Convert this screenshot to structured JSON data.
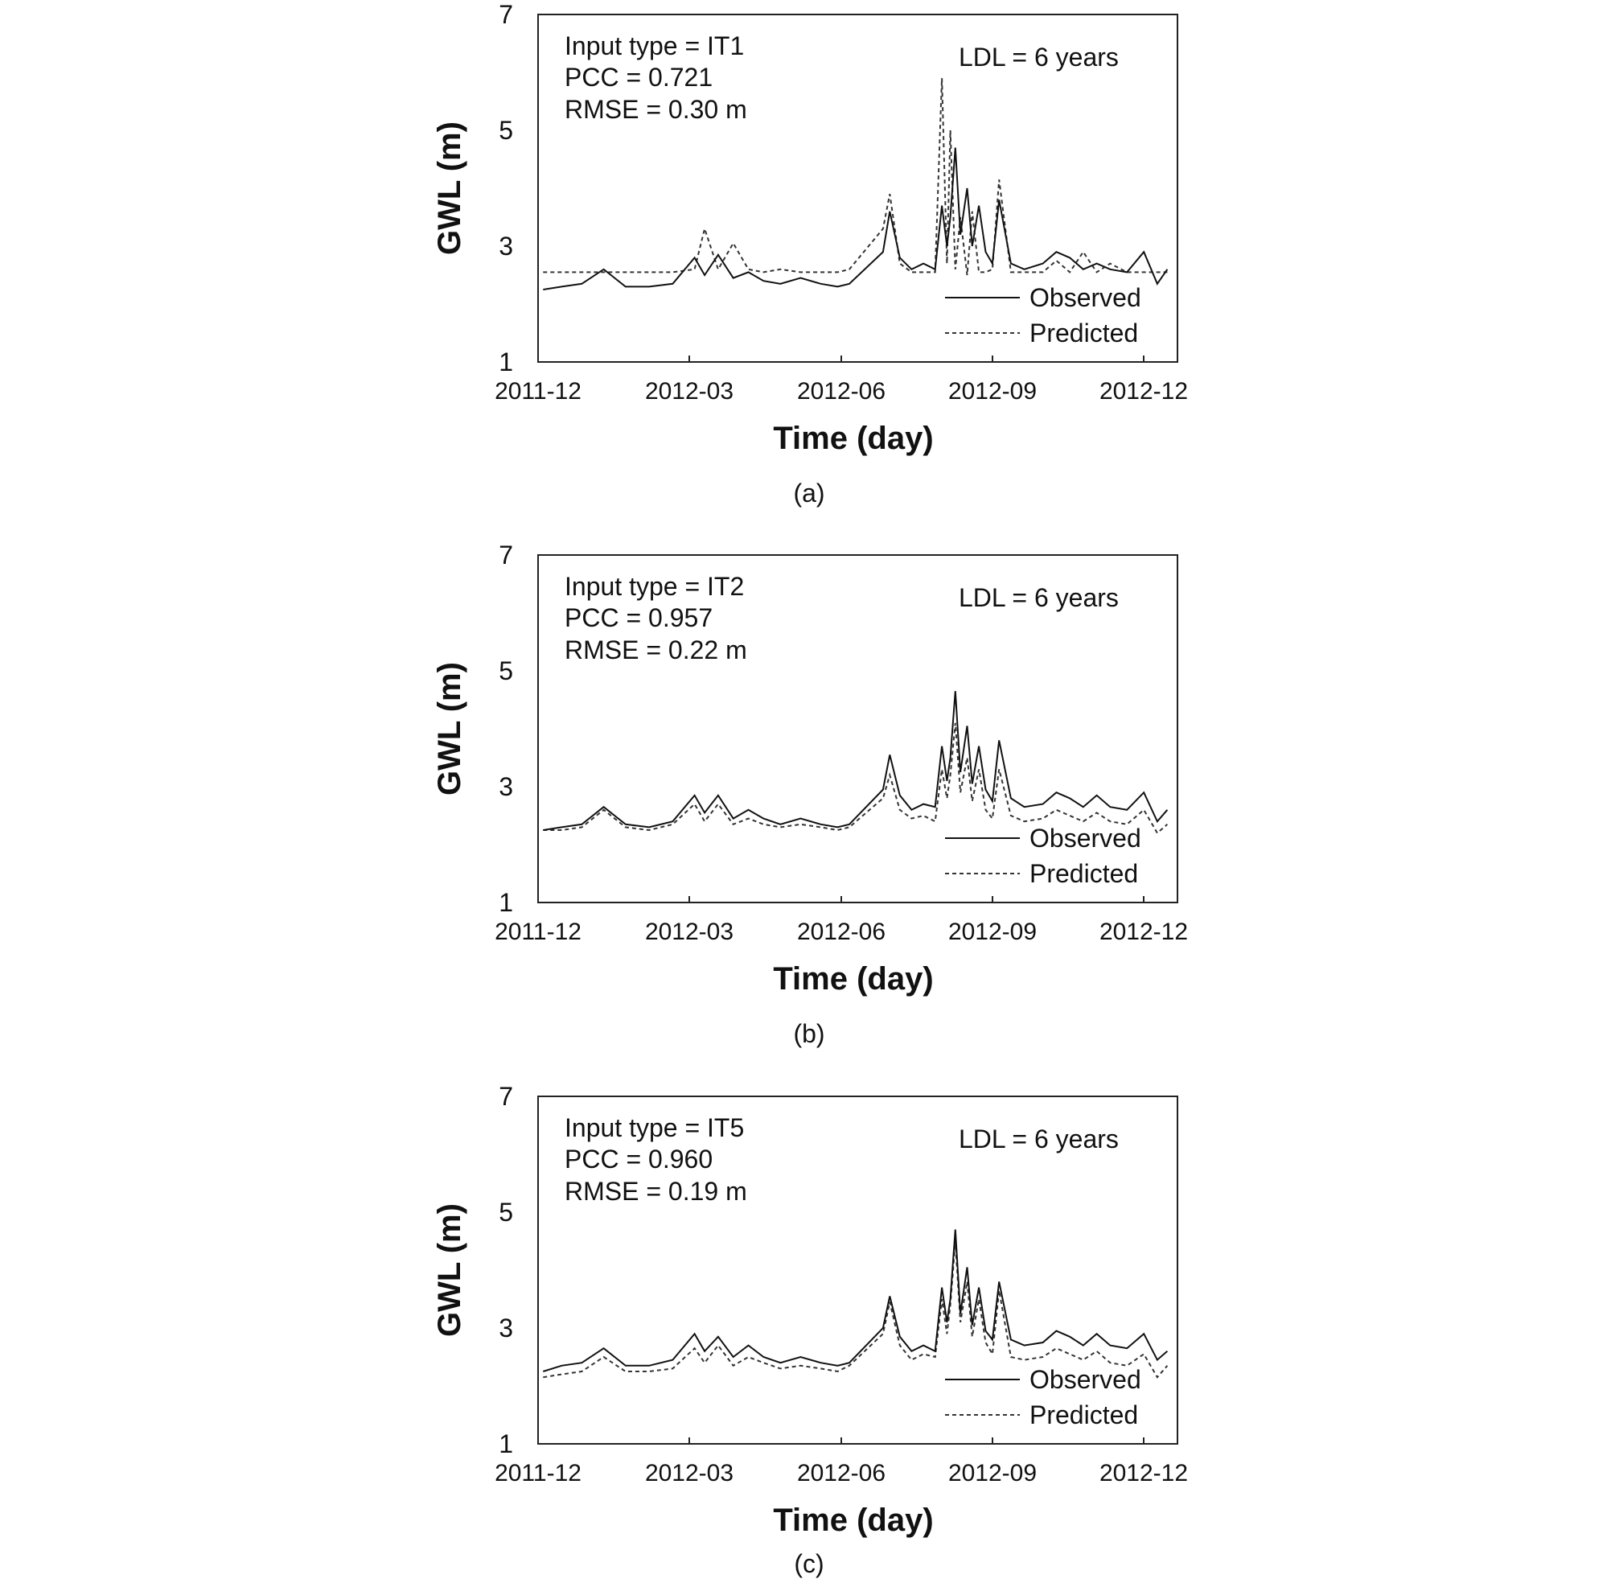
{
  "chart_data": [
    {
      "type": "line",
      "panel": "(a)",
      "xlabel": "Time (day)",
      "ylabel": "GWL (m)",
      "xlim": [
        "2011-12-06",
        "2012-12-20"
      ],
      "ylim": [
        1,
        7
      ],
      "x_ticks": [
        "2011-12",
        "2012-03",
        "2012-06",
        "2012-09",
        "2012-12"
      ],
      "y_ticks": [
        1,
        3,
        5,
        7
      ],
      "grid": false,
      "legend": "bottom-right",
      "annotations": [
        "Input type = IT1",
        "PCC = 0.721",
        "RMSE = 0.30 m",
        "LDL = 6 years"
      ],
      "x": [
        "2011-12-09",
        "2011-12-20",
        "2012-01-01",
        "2012-01-14",
        "2012-01-27",
        "2012-02-10",
        "2012-02-24",
        "2012-03-08",
        "2012-03-14",
        "2012-03-22",
        "2012-03-31",
        "2012-04-09",
        "2012-04-18",
        "2012-04-28",
        "2012-05-10",
        "2012-05-22",
        "2012-06-01",
        "2012-06-08",
        "2012-06-28",
        "2012-07-02",
        "2012-07-08",
        "2012-07-15",
        "2012-07-22",
        "2012-07-29",
        "2012-08-02",
        "2012-08-05",
        "2012-08-07",
        "2012-08-10",
        "2012-08-13",
        "2012-08-17",
        "2012-08-20",
        "2012-08-24",
        "2012-08-28",
        "2012-09-01",
        "2012-09-05",
        "2012-09-12",
        "2012-09-20",
        "2012-10-01",
        "2012-10-09",
        "2012-10-17",
        "2012-10-25",
        "2012-11-02",
        "2012-11-10",
        "2012-11-20",
        "2012-11-30",
        "2012-12-08",
        "2012-12-14"
      ],
      "series": [
        {
          "name": "Observed",
          "style": "solid",
          "values": [
            2.25,
            2.3,
            2.35,
            2.6,
            2.3,
            2.3,
            2.35,
            2.8,
            2.5,
            2.85,
            2.45,
            2.55,
            2.4,
            2.35,
            2.45,
            2.35,
            2.3,
            2.35,
            2.9,
            3.6,
            2.8,
            2.6,
            2.7,
            2.6,
            3.7,
            3.0,
            3.5,
            4.7,
            3.2,
            4.0,
            3.0,
            3.7,
            2.9,
            2.7,
            3.8,
            2.7,
            2.6,
            2.7,
            2.9,
            2.8,
            2.6,
            2.7,
            2.6,
            2.55,
            2.9,
            2.35,
            2.6
          ]
        },
        {
          "name": "Predicted",
          "style": "dashed",
          "values": [
            2.55,
            2.55,
            2.55,
            2.55,
            2.55,
            2.55,
            2.55,
            2.6,
            3.3,
            2.6,
            3.05,
            2.6,
            2.55,
            2.6,
            2.55,
            2.55,
            2.55,
            2.6,
            3.3,
            3.9,
            2.7,
            2.55,
            2.55,
            2.55,
            5.9,
            2.7,
            5.0,
            2.6,
            3.5,
            2.5,
            3.6,
            2.55,
            2.55,
            2.6,
            4.15,
            2.55,
            2.55,
            2.55,
            2.75,
            2.55,
            2.9,
            2.55,
            2.7,
            2.55,
            2.55,
            2.55,
            2.55
          ]
        }
      ]
    },
    {
      "type": "line",
      "panel": "(b)",
      "xlabel": "Time (day)",
      "ylabel": "GWL (m)",
      "xlim": [
        "2011-12-06",
        "2012-12-20"
      ],
      "ylim": [
        1,
        7
      ],
      "x_ticks": [
        "2011-12",
        "2012-03",
        "2012-06",
        "2012-09",
        "2012-12"
      ],
      "y_ticks": [
        1,
        3,
        5,
        7
      ],
      "grid": false,
      "legend": "bottom-right",
      "annotations": [
        "Input type = IT2",
        "PCC = 0.957",
        "RMSE = 0.22 m",
        "LDL = 6 years"
      ],
      "x": [
        "2011-12-09",
        "2011-12-20",
        "2012-01-01",
        "2012-01-14",
        "2012-01-27",
        "2012-02-10",
        "2012-02-24",
        "2012-03-08",
        "2012-03-14",
        "2012-03-22",
        "2012-03-31",
        "2012-04-09",
        "2012-04-18",
        "2012-04-28",
        "2012-05-10",
        "2012-05-22",
        "2012-06-01",
        "2012-06-08",
        "2012-06-28",
        "2012-07-02",
        "2012-07-08",
        "2012-07-15",
        "2012-07-22",
        "2012-07-29",
        "2012-08-02",
        "2012-08-05",
        "2012-08-07",
        "2012-08-10",
        "2012-08-13",
        "2012-08-17",
        "2012-08-20",
        "2012-08-24",
        "2012-08-28",
        "2012-09-01",
        "2012-09-05",
        "2012-09-12",
        "2012-09-20",
        "2012-10-01",
        "2012-10-09",
        "2012-10-17",
        "2012-10-25",
        "2012-11-02",
        "2012-11-10",
        "2012-11-20",
        "2012-11-30",
        "2012-12-08",
        "2012-12-14"
      ],
      "series": [
        {
          "name": "Observed",
          "style": "solid",
          "values": [
            2.25,
            2.3,
            2.35,
            2.65,
            2.35,
            2.3,
            2.4,
            2.85,
            2.55,
            2.85,
            2.45,
            2.6,
            2.45,
            2.35,
            2.45,
            2.35,
            2.3,
            2.35,
            2.95,
            3.55,
            2.85,
            2.6,
            2.7,
            2.65,
            3.7,
            3.1,
            3.5,
            4.65,
            3.25,
            4.05,
            3.05,
            3.7,
            2.95,
            2.75,
            3.8,
            2.8,
            2.65,
            2.7,
            2.9,
            2.8,
            2.65,
            2.85,
            2.65,
            2.6,
            2.9,
            2.4,
            2.6
          ]
        },
        {
          "name": "Predicted",
          "style": "dashed",
          "values": [
            2.25,
            2.25,
            2.3,
            2.6,
            2.3,
            2.25,
            2.35,
            2.7,
            2.4,
            2.7,
            2.35,
            2.45,
            2.35,
            2.3,
            2.35,
            2.3,
            2.25,
            2.3,
            2.8,
            3.2,
            2.6,
            2.45,
            2.5,
            2.4,
            3.3,
            2.8,
            3.2,
            4.1,
            2.9,
            3.5,
            2.75,
            3.3,
            2.6,
            2.45,
            3.3,
            2.5,
            2.4,
            2.45,
            2.6,
            2.5,
            2.4,
            2.55,
            2.4,
            2.35,
            2.6,
            2.2,
            2.35
          ]
        }
      ]
    },
    {
      "type": "line",
      "panel": "(c)",
      "xlabel": "Time (day)",
      "ylabel": "GWL (m)",
      "xlim": [
        "2011-12-06",
        "2012-12-20"
      ],
      "ylim": [
        1,
        7
      ],
      "x_ticks": [
        "2011-12",
        "2012-03",
        "2012-06",
        "2012-09",
        "2012-12"
      ],
      "y_ticks": [
        1,
        3,
        5,
        7
      ],
      "grid": false,
      "legend": "bottom-right",
      "annotations": [
        "Input type = IT5",
        "PCC = 0.960",
        "RMSE = 0.19 m",
        "LDL = 6 years"
      ],
      "x": [
        "2011-12-09",
        "2011-12-20",
        "2012-01-01",
        "2012-01-14",
        "2012-01-27",
        "2012-02-10",
        "2012-02-24",
        "2012-03-08",
        "2012-03-14",
        "2012-03-22",
        "2012-03-31",
        "2012-04-09",
        "2012-04-18",
        "2012-04-28",
        "2012-05-10",
        "2012-05-22",
        "2012-06-01",
        "2012-06-08",
        "2012-06-28",
        "2012-07-02",
        "2012-07-08",
        "2012-07-15",
        "2012-07-22",
        "2012-07-29",
        "2012-08-02",
        "2012-08-05",
        "2012-08-07",
        "2012-08-10",
        "2012-08-13",
        "2012-08-17",
        "2012-08-20",
        "2012-08-24",
        "2012-08-28",
        "2012-09-01",
        "2012-09-05",
        "2012-09-12",
        "2012-09-20",
        "2012-10-01",
        "2012-10-09",
        "2012-10-17",
        "2012-10-25",
        "2012-11-02",
        "2012-11-10",
        "2012-11-20",
        "2012-11-30",
        "2012-12-08",
        "2012-12-14"
      ],
      "series": [
        {
          "name": "Observed",
          "style": "solid",
          "values": [
            2.25,
            2.35,
            2.4,
            2.65,
            2.35,
            2.35,
            2.45,
            2.9,
            2.6,
            2.85,
            2.5,
            2.7,
            2.5,
            2.4,
            2.5,
            2.4,
            2.35,
            2.4,
            3.0,
            3.55,
            2.85,
            2.6,
            2.7,
            2.6,
            3.7,
            3.1,
            3.5,
            4.7,
            3.25,
            4.05,
            3.05,
            3.7,
            2.95,
            2.8,
            3.8,
            2.8,
            2.7,
            2.75,
            2.95,
            2.85,
            2.7,
            2.9,
            2.7,
            2.65,
            2.9,
            2.45,
            2.6
          ]
        },
        {
          "name": "Predicted",
          "style": "dashed",
          "values": [
            2.15,
            2.2,
            2.25,
            2.5,
            2.25,
            2.25,
            2.3,
            2.65,
            2.4,
            2.7,
            2.35,
            2.5,
            2.4,
            2.3,
            2.35,
            2.3,
            2.25,
            2.35,
            2.9,
            3.45,
            2.7,
            2.45,
            2.55,
            2.5,
            3.5,
            2.9,
            3.4,
            4.5,
            3.1,
            3.8,
            2.85,
            3.5,
            2.75,
            2.55,
            3.65,
            2.5,
            2.45,
            2.5,
            2.65,
            2.55,
            2.45,
            2.6,
            2.4,
            2.35,
            2.55,
            2.15,
            2.35
          ]
        }
      ]
    }
  ],
  "panels_text": [
    {
      "caption": "(a)",
      "ylabel": "GWL (m)",
      "xlabel": "Time (day)",
      "annot_input": "Input type = IT1",
      "annot_pcc": "PCC = 0.721",
      "annot_rmse": "RMSE = 0.30 m",
      "annot_ldl": "LDL = 6 years",
      "legend_observed": "Observed",
      "legend_predicted": "Predicted",
      "x_ticks": [
        "2011-12",
        "2012-03",
        "2012-06",
        "2012-09",
        "2012-12"
      ],
      "y_ticks": [
        "1",
        "3",
        "5",
        "7"
      ]
    },
    {
      "caption": "(b)",
      "ylabel": "GWL (m)",
      "xlabel": "Time (day)",
      "annot_input": "Input type = IT2",
      "annot_pcc": "PCC = 0.957",
      "annot_rmse": "RMSE = 0.22 m",
      "annot_ldl": "LDL = 6 years",
      "legend_observed": "Observed",
      "legend_predicted": "Predicted",
      "x_ticks": [
        "2011-12",
        "2012-03",
        "2012-06",
        "2012-09",
        "2012-12"
      ],
      "y_ticks": [
        "1",
        "3",
        "5",
        "7"
      ]
    },
    {
      "caption": "(c)",
      "ylabel": "GWL (m)",
      "xlabel": "Time (day)",
      "annot_input": "Input type = IT5",
      "annot_pcc": "PCC = 0.960",
      "annot_rmse": "RMSE = 0.19 m",
      "annot_ldl": "LDL = 6 years",
      "legend_observed": "Observed",
      "legend_predicted": "Predicted",
      "x_ticks": [
        "2011-12",
        "2012-03",
        "2012-06",
        "2012-09",
        "2012-12"
      ],
      "y_ticks": [
        "1",
        "3",
        "5",
        "7"
      ]
    }
  ]
}
